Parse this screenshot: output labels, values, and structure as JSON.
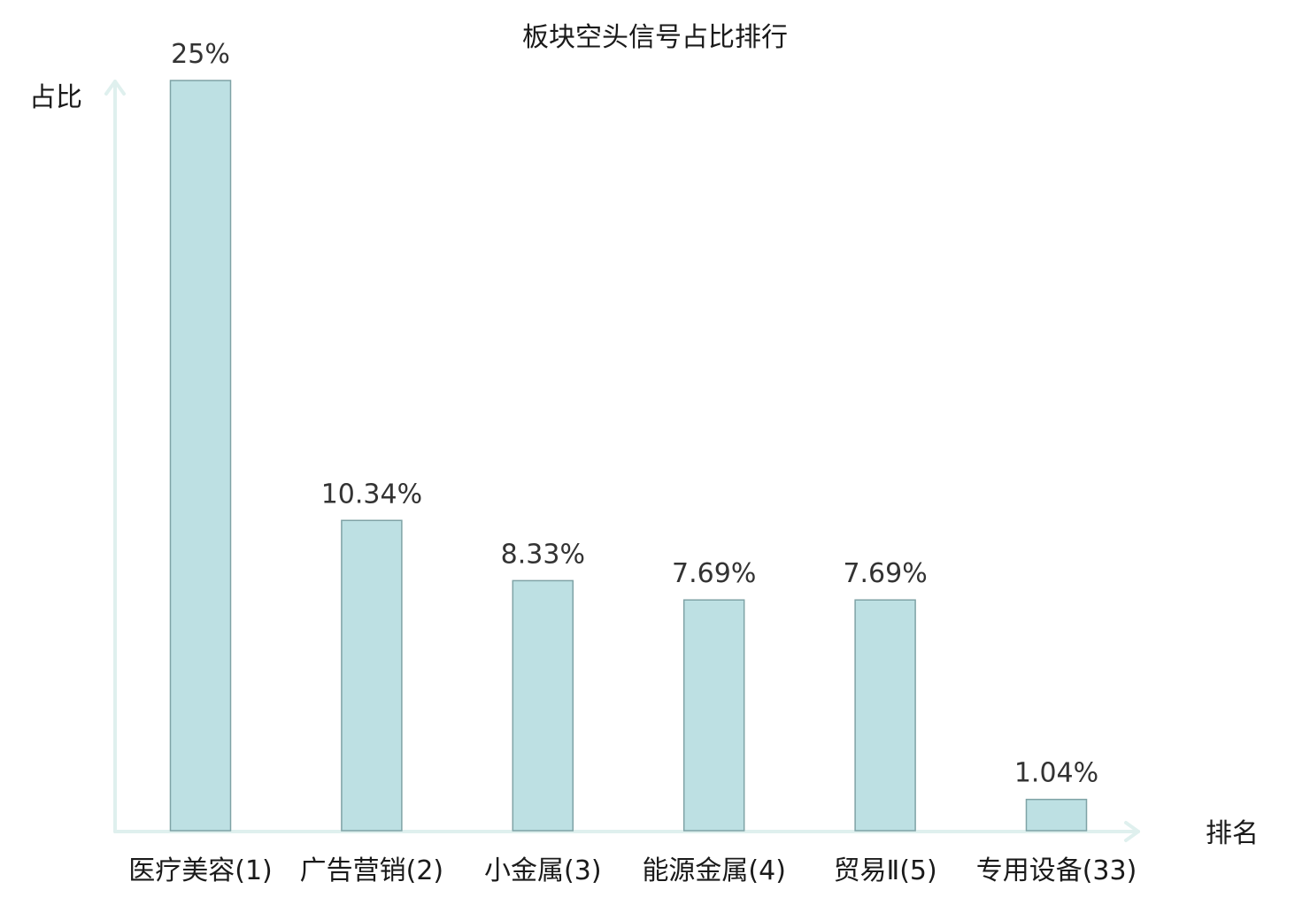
{
  "chart_data": {
    "type": "bar",
    "title": "板块空头信号占比排行",
    "xlabel": "排名",
    "ylabel": "占比",
    "categories": [
      "医疗美容(1)",
      "广告营销(2)",
      "小金属(3)",
      "能源金属(4)",
      "贸易Ⅱ(5)",
      "专用设备(33)"
    ],
    "values": [
      25,
      10.34,
      8.33,
      7.69,
      7.69,
      1.04
    ],
    "value_labels": [
      "25%",
      "10.34%",
      "8.33%",
      "7.69%",
      "7.69%",
      "1.04%"
    ],
    "highlight_index": 5,
    "ylim": [
      0,
      25
    ],
    "grid": false,
    "colors": {
      "bar_fill": "#bde0e3",
      "bar_stroke": "#7fa3a6",
      "axis": "#dff0ee",
      "highlight_text": "#e8141b",
      "text": "#1a1a1a",
      "value_text": "#333333"
    }
  }
}
